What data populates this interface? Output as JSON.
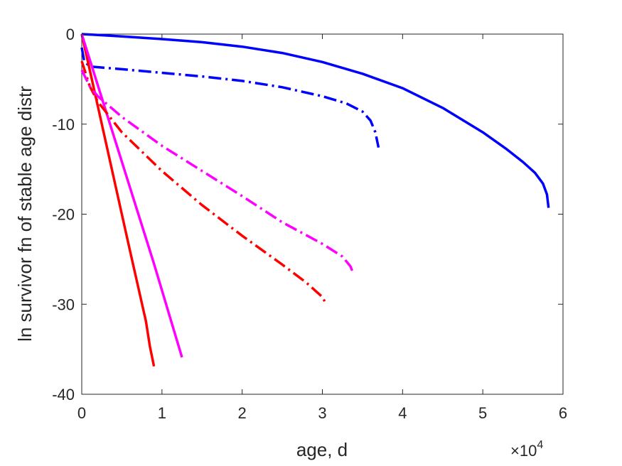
{
  "chart_data": {
    "type": "line",
    "xlabel": "age, d",
    "ylabel": "ln survivor fn of stable age distr",
    "xlim": [
      0,
      60000
    ],
    "ylim": [
      -40,
      0
    ],
    "x_ticks": [
      0,
      1,
      2,
      3,
      4,
      5,
      6
    ],
    "x_tick_labels": [
      "0",
      "1",
      "2",
      "3",
      "4",
      "5",
      "6"
    ],
    "x_multiplier": {
      "base": "×10",
      "exponent": "4"
    },
    "y_ticks": [
      0,
      -10,
      -20,
      -30,
      -40
    ],
    "y_tick_labels": [
      "0",
      "-10",
      "-20",
      "-30",
      "-40"
    ],
    "grid": false,
    "series": [
      {
        "color": "#0000ff",
        "style": "solid",
        "points": [
          [
            0,
            0
          ],
          [
            5000,
            -0.25
          ],
          [
            10000,
            -0.55
          ],
          [
            15000,
            -0.9
          ],
          [
            20000,
            -1.4
          ],
          [
            25000,
            -2.1
          ],
          [
            30000,
            -3.1
          ],
          [
            35000,
            -4.4
          ],
          [
            40000,
            -6.0
          ],
          [
            45000,
            -8.2
          ],
          [
            50000,
            -10.9
          ],
          [
            53000,
            -12.8
          ],
          [
            55000,
            -14.2
          ],
          [
            56500,
            -15.4
          ],
          [
            57500,
            -16.6
          ],
          [
            58000,
            -17.8
          ],
          [
            58200,
            -19.3
          ]
        ]
      },
      {
        "color": "#0000ff",
        "style": "dashdot",
        "points": [
          [
            0,
            -1.5
          ],
          [
            300,
            -3.0
          ],
          [
            1000,
            -3.6
          ],
          [
            5000,
            -3.9
          ],
          [
            10000,
            -4.3
          ],
          [
            15000,
            -4.7
          ],
          [
            20000,
            -5.2
          ],
          [
            25000,
            -5.9
          ],
          [
            30000,
            -6.9
          ],
          [
            33000,
            -7.7
          ],
          [
            35000,
            -8.6
          ],
          [
            36000,
            -9.6
          ],
          [
            36600,
            -10.9
          ],
          [
            37000,
            -12.6
          ]
        ]
      },
      {
        "color": "#ff0000",
        "style": "solid",
        "points": [
          [
            0,
            0
          ],
          [
            2000,
            -8.0
          ],
          [
            4000,
            -16.0
          ],
          [
            6000,
            -24.0
          ],
          [
            8000,
            -31.9
          ],
          [
            8500,
            -34.7
          ],
          [
            9000,
            -36.9
          ]
        ]
      },
      {
        "color": "#ff00ff",
        "style": "solid",
        "points": [
          [
            0,
            0
          ],
          [
            3000,
            -8.5
          ],
          [
            6000,
            -17.0
          ],
          [
            9000,
            -25.5
          ],
          [
            12500,
            -35.9
          ]
        ]
      },
      {
        "color": "#ff0000",
        "style": "dashdot",
        "points": [
          [
            0,
            -3.0
          ],
          [
            1000,
            -5.8
          ],
          [
            2000,
            -7.5
          ],
          [
            5000,
            -10.9
          ],
          [
            10000,
            -15.2
          ],
          [
            15000,
            -19.0
          ],
          [
            20000,
            -22.4
          ],
          [
            25000,
            -25.6
          ],
          [
            28000,
            -27.6
          ],
          [
            30000,
            -29.2
          ],
          [
            30300,
            -29.7
          ]
        ]
      },
      {
        "color": "#ff00ff",
        "style": "dashdot",
        "points": [
          [
            0,
            -4.0
          ],
          [
            1000,
            -5.8
          ],
          [
            2000,
            -6.9
          ],
          [
            5000,
            -9.2
          ],
          [
            10000,
            -12.4
          ],
          [
            15000,
            -15.2
          ],
          [
            20000,
            -18.0
          ],
          [
            25000,
            -20.9
          ],
          [
            30000,
            -23.3
          ],
          [
            32500,
            -24.7
          ],
          [
            33500,
            -25.8
          ],
          [
            33900,
            -26.7
          ]
        ]
      }
    ]
  }
}
